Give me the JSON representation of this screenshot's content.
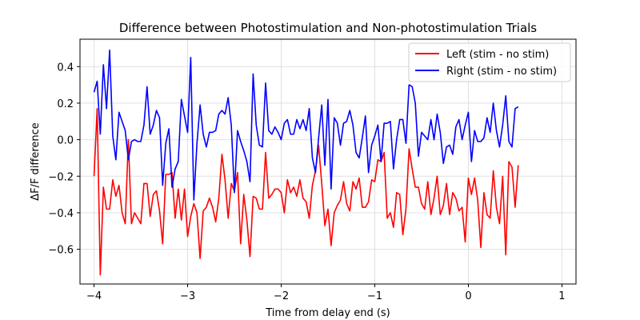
{
  "chart_data": {
    "type": "line",
    "title": "Difference between Photostimulation and Non-photostimulation Trials",
    "xlabel": "Time from delay end (s)",
    "ylabel": "ΔF/F difference",
    "xlim": [
      -4.15,
      1.15
    ],
    "ylim": [
      -0.79,
      0.55
    ],
    "xticks": [
      -4,
      -3,
      -2,
      -1,
      0,
      1
    ],
    "xtick_labels": [
      "−4",
      "−3",
      "−2",
      "−1",
      "0",
      "1"
    ],
    "yticks": [
      -0.6,
      -0.4,
      -0.2,
      0.0,
      0.2,
      0.4
    ],
    "ytick_labels": [
      "−0.6",
      "−0.4",
      "−0.2",
      "0.0",
      "0.2",
      "0.4"
    ],
    "grid": true,
    "legend_position": "upper right",
    "x_start": -4.0,
    "x_step": 0.03333,
    "series": [
      {
        "name": "Left (stim - no stim)",
        "color": "#ff0000",
        "values": [
          -0.2,
          0.17,
          -0.74,
          -0.26,
          -0.38,
          -0.38,
          -0.22,
          -0.31,
          -0.25,
          -0.4,
          -0.46,
          0.0,
          -0.46,
          -0.4,
          -0.43,
          -0.46,
          -0.24,
          -0.24,
          -0.42,
          -0.3,
          -0.28,
          -0.39,
          -0.57,
          -0.19,
          -0.19,
          -0.18,
          -0.43,
          -0.27,
          -0.44,
          -0.27,
          -0.53,
          -0.42,
          -0.35,
          -0.4,
          -0.65,
          -0.39,
          -0.37,
          -0.32,
          -0.37,
          -0.45,
          -0.32,
          -0.08,
          -0.22,
          -0.43,
          -0.24,
          -0.28,
          -0.18,
          -0.57,
          -0.3,
          -0.44,
          -0.64,
          -0.31,
          -0.32,
          -0.38,
          -0.38,
          -0.07,
          -0.32,
          -0.3,
          -0.27,
          -0.27,
          -0.29,
          -0.4,
          -0.22,
          -0.29,
          -0.26,
          -0.31,
          -0.22,
          -0.32,
          -0.34,
          -0.43,
          -0.25,
          -0.17,
          -0.03,
          -0.24,
          -0.47,
          -0.38,
          -0.58,
          -0.4,
          -0.36,
          -0.33,
          -0.23,
          -0.35,
          -0.39,
          -0.23,
          -0.27,
          -0.21,
          -0.37,
          -0.37,
          -0.34,
          -0.22,
          -0.23,
          -0.11,
          -0.12,
          -0.07,
          -0.43,
          -0.4,
          -0.48,
          -0.29,
          -0.3,
          -0.52,
          -0.38,
          -0.05,
          -0.16,
          -0.26,
          -0.26,
          -0.35,
          -0.38,
          -0.23,
          -0.41,
          -0.32,
          -0.2,
          -0.41,
          -0.36,
          -0.24,
          -0.41,
          -0.29,
          -0.32,
          -0.39,
          -0.37,
          -0.56,
          -0.21,
          -0.3,
          -0.21,
          -0.33,
          -0.59,
          -0.29,
          -0.41,
          -0.43,
          -0.17,
          -0.37,
          -0.46,
          -0.2,
          -0.63,
          -0.12,
          -0.15,
          -0.37,
          -0.14
        ]
      },
      {
        "name": "Right (stim - no stim)",
        "color": "#0000ff",
        "values": [
          0.26,
          0.32,
          0.03,
          0.41,
          0.17,
          0.49,
          0.02,
          -0.11,
          0.15,
          0.1,
          0.05,
          -0.11,
          -0.01,
          0.0,
          -0.01,
          -0.01,
          0.08,
          0.29,
          0.03,
          0.08,
          0.16,
          0.12,
          -0.25,
          -0.02,
          0.06,
          -0.26,
          -0.16,
          -0.12,
          0.22,
          0.13,
          0.04,
          0.45,
          -0.33,
          -0.02,
          0.19,
          0.03,
          -0.04,
          0.04,
          0.04,
          0.05,
          0.14,
          0.16,
          0.14,
          0.23,
          0.08,
          -0.29,
          0.05,
          -0.01,
          -0.06,
          -0.12,
          -0.23,
          0.36,
          0.08,
          -0.03,
          -0.04,
          0.31,
          0.05,
          0.03,
          0.07,
          0.04,
          0.0,
          0.09,
          0.11,
          0.03,
          0.03,
          0.11,
          0.06,
          0.11,
          0.05,
          0.17,
          -0.1,
          -0.18,
          0.01,
          0.19,
          -0.14,
          0.22,
          -0.27,
          0.12,
          0.09,
          -0.03,
          0.09,
          0.1,
          0.16,
          0.08,
          -0.07,
          -0.1,
          0.01,
          0.13,
          -0.18,
          -0.03,
          0.02,
          0.08,
          -0.12,
          0.09,
          0.09,
          0.1,
          -0.16,
          0.0,
          0.11,
          0.11,
          -0.02,
          0.3,
          0.29,
          0.2,
          -0.09,
          0.04,
          0.02,
          0.0,
          0.11,
          0.0,
          0.14,
          0.04,
          -0.13,
          -0.04,
          -0.03,
          -0.08,
          0.07,
          0.11,
          0.0,
          0.08,
          0.15,
          -0.12,
          0.05,
          -0.01,
          -0.01,
          0.01,
          0.12,
          0.04,
          0.2,
          0.05,
          -0.04,
          0.08,
          0.24,
          -0.01,
          -0.04,
          0.17,
          0.18
        ]
      }
    ]
  }
}
